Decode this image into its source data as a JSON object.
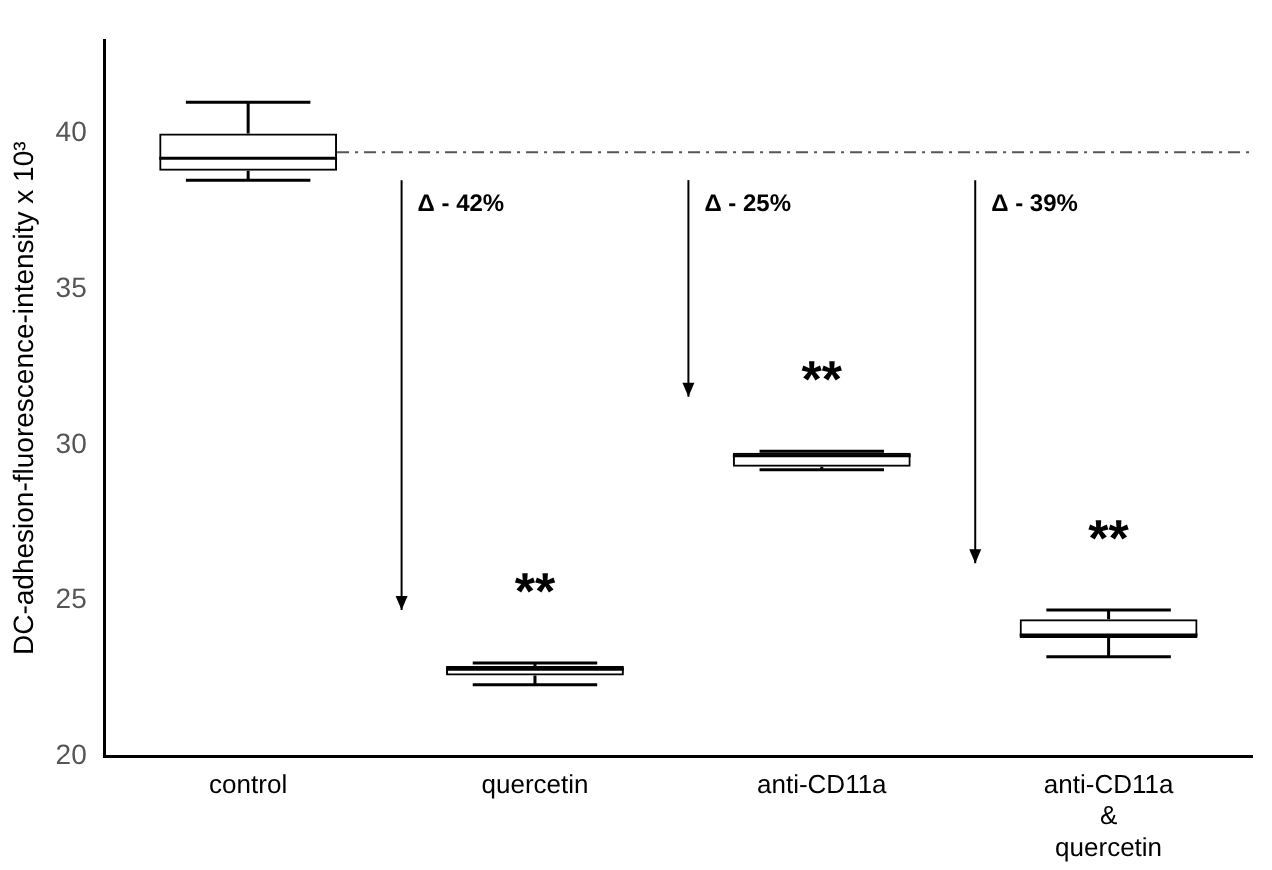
{
  "chart_data": {
    "type": "box",
    "ylabel": "DC-adhesion-fluorescence-intensity x 10³",
    "categories": [
      "control",
      "quercetin",
      "anti-CD11a",
      "anti-CD11a\n&\nquercetin"
    ],
    "boxes": [
      {
        "low": 38.5,
        "q1": 38.8,
        "median": 39.2,
        "q3": 40.0,
        "high": 41.0
      },
      {
        "low": 22.3,
        "q1": 22.6,
        "median": 22.8,
        "q3": 22.9,
        "high": 23.0
      },
      {
        "low": 29.2,
        "q1": 29.3,
        "median": 29.65,
        "q3": 29.75,
        "high": 29.8
      },
      {
        "low": 23.2,
        "q1": 23.8,
        "median": 23.9,
        "q3": 24.4,
        "high": 24.7
      }
    ],
    "color": "#000000",
    "ylim": [
      20,
      43
    ],
    "yticks": [
      20,
      25,
      30,
      35,
      40
    ],
    "grid": false,
    "legend": false,
    "ref_lines": [
      {
        "axis": "y",
        "value": 39.4,
        "line_style": "dashdot",
        "color": "#555555"
      }
    ],
    "annotations": [
      "Δ - 42%",
      "Δ - 25%",
      "Δ - 39%",
      "**",
      "**",
      "**"
    ]
  }
}
